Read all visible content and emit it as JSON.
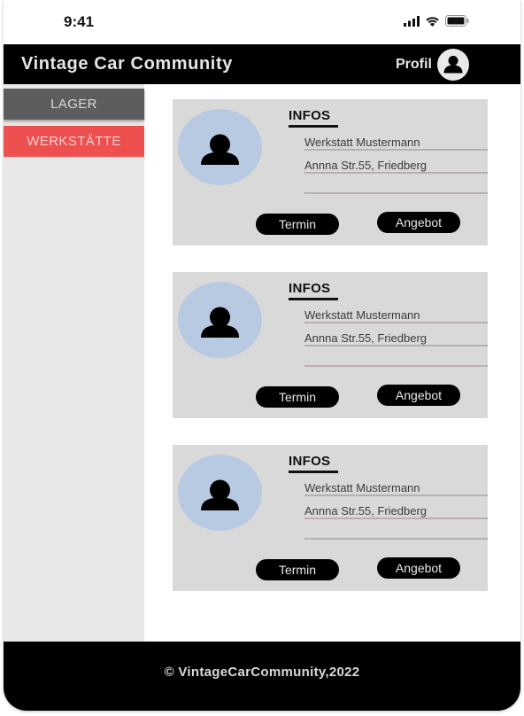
{
  "status_bar": {
    "time": "9:41",
    "icons": [
      "signal-icon",
      "wifi-icon",
      "battery-icon"
    ]
  },
  "header": {
    "title": "Vintage Car Community",
    "profile_label": "Profil",
    "profile_icon": "user-icon"
  },
  "sidebar": {
    "items": [
      {
        "label": "LAGER",
        "active": false
      },
      {
        "label": "WERKSTÄTTE",
        "active": true
      }
    ]
  },
  "cards": [
    {
      "section_title": "INFOS",
      "name": "Werkstatt Mustermann",
      "address": "Annna Str.55, Friedberg",
      "termin_label": "Termin",
      "angebot_label": "Angebot"
    },
    {
      "section_title": "INFOS",
      "name": "Werkstatt Mustermann",
      "address": "Annna Str.55, Friedberg",
      "termin_label": "Termin",
      "angebot_label": "Angebot"
    },
    {
      "section_title": "INFOS",
      "name": "Werkstatt Mustermann",
      "address": "Annna Str.55, Friedberg",
      "termin_label": "Termin",
      "angebot_label": "Angebot"
    }
  ],
  "footer": {
    "text": "©  VintageCarCommunity,2022"
  },
  "colors": {
    "header_bg": "#000000",
    "sidebar_bg": "#e8e8e8",
    "nav_inactive_bg": "#5d5d5d",
    "nav_active_bg": "#ee4f4f",
    "card_bg": "#d9d9d9",
    "avatar_bg": "#b8c9e2",
    "button_bg": "#000000"
  }
}
